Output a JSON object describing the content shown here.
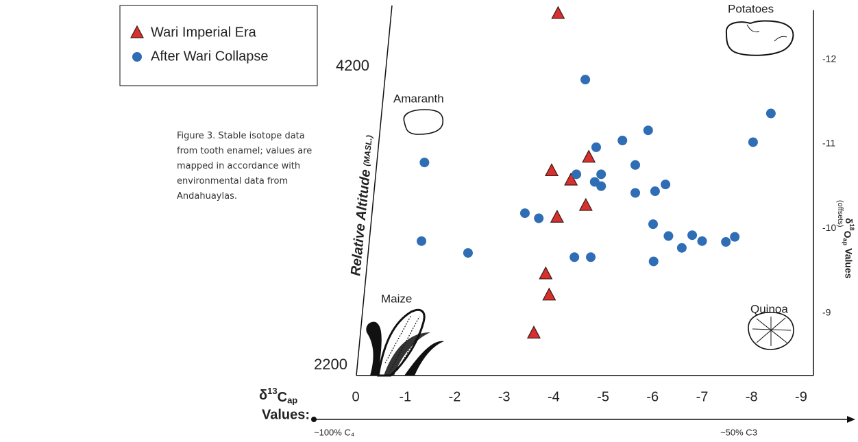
{
  "caption": "Figure 3. Stable isotope data from tooth enamel; values are mapped in accordance with environmental data from Andahuaylas.",
  "chart_data": {
    "type": "scatter",
    "x_label": {
      "symbol": "δ",
      "isotope": "13",
      "element": "C",
      "subscript": "ap",
      "word": "Values:"
    },
    "y_label": {
      "symbol": "δ",
      "isotope": "18",
      "element": "O",
      "subscript": "ap",
      "word": "Values",
      "note": "(offsets)"
    },
    "altitude_label": {
      "text": "Relative Altitude",
      "unit": "(MASL.)"
    },
    "altitude_ticks": [
      4200,
      2200
    ],
    "x_annotations": [
      "~100% C₄",
      "~50% C3"
    ],
    "plant_labels": [
      "Potatoes",
      "Amaranth",
      "Maize",
      "Quinoa"
    ],
    "xlim": [
      0,
      -9.25
    ],
    "xticks": [
      0,
      -1,
      -2,
      -3,
      -4,
      -5,
      -6,
      -7,
      -8,
      -9
    ],
    "ylim": [
      -8.26,
      -12.58
    ],
    "yticks": [
      -12,
      -11,
      -10,
      -9
    ],
    "series": [
      {
        "name": "Wari Imperial Era",
        "marker": "triangle",
        "color": "#d8302c",
        "x": [
          -4.09,
          -3.96,
          -4.35,
          -4.71,
          -4.65,
          -4.07,
          -3.84,
          -3.91,
          -3.6
        ],
        "values": [
          -12.54,
          -10.68,
          -10.57,
          -10.84,
          -10.27,
          -10.13,
          -9.46,
          -9.21,
          -8.76
        ]
      },
      {
        "name": "After Wari Collapse",
        "marker": "circle",
        "color": "#2f6db5",
        "x": [
          -1.39,
          -1.33,
          -2.27,
          -4.64,
          -4.86,
          -5.39,
          -5.91,
          -8.39,
          -8.03,
          -5.65,
          -4.46,
          -4.83,
          -4.96,
          -4.96,
          -5.65,
          -6.05,
          -6.26,
          -3.42,
          -3.7,
          -6.01,
          -6.32,
          -6.8,
          -7.0,
          -6.59,
          -7.48,
          -7.66,
          -4.42,
          -4.75,
          -6.02
        ],
        "values": [
          -10.78,
          -9.85,
          -9.71,
          -11.76,
          -10.96,
          -11.04,
          -11.16,
          -11.36,
          -11.02,
          -10.75,
          -10.64,
          -10.55,
          -10.64,
          -10.5,
          -10.42,
          -10.44,
          -10.52,
          -10.18,
          -10.12,
          -10.05,
          -9.91,
          -9.92,
          -9.85,
          -9.77,
          -9.84,
          -9.9,
          -9.66,
          -9.66,
          -9.61
        ]
      }
    ]
  }
}
